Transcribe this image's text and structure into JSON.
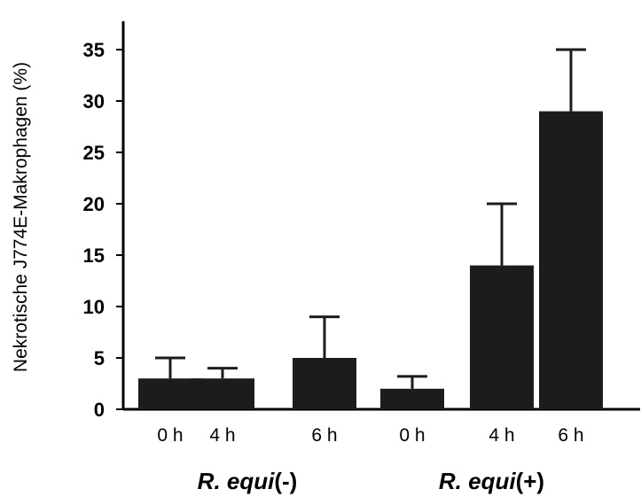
{
  "chart_data": {
    "type": "bar",
    "ylabel": "Nekrotische J774E-Makrophagen (%)",
    "ylim": [
      0,
      35
    ],
    "yticks": [
      0,
      5,
      10,
      15,
      20,
      25,
      30,
      35
    ],
    "categories": [
      "0 h",
      "4 h",
      "6 h",
      "0 h",
      "4 h",
      "6 h"
    ],
    "values": [
      3,
      3,
      5,
      2,
      14,
      29
    ],
    "error_upper": [
      5,
      4,
      9,
      3.2,
      20,
      35
    ],
    "groups": [
      {
        "italic": "R. equi",
        "suffix": "(-)",
        "categories": [
          0,
          1,
          2
        ]
      },
      {
        "italic": "R. equi",
        "suffix": "(+)",
        "categories": [
          3,
          4,
          5
        ]
      }
    ],
    "bar_color": "#1c1c1c",
    "grid": false,
    "legend": "none"
  }
}
